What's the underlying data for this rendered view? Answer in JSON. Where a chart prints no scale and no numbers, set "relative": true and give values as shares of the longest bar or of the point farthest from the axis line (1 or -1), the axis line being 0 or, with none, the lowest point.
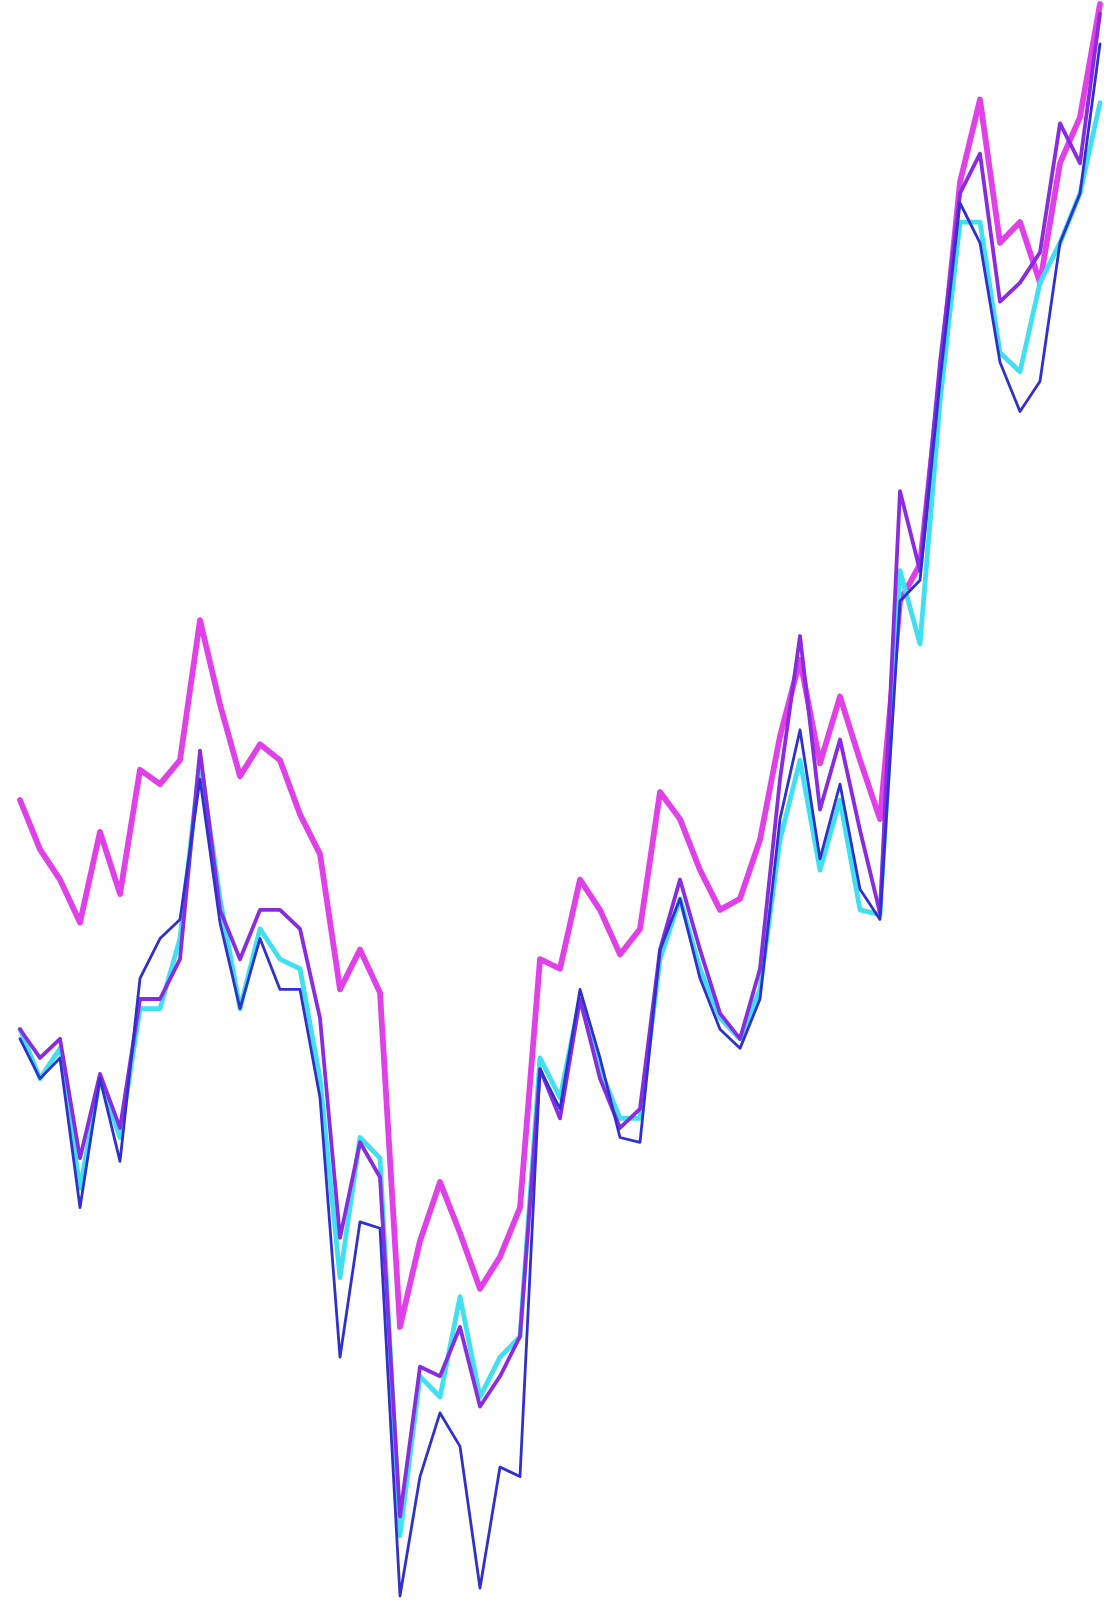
{
  "chart_data": {
    "type": "line",
    "relative": true,
    "categories": [
      null,
      null,
      null,
      null,
      null,
      null,
      null,
      null,
      null,
      null,
      null,
      null,
      null,
      null,
      null,
      null,
      null,
      null,
      null,
      null,
      null,
      null,
      null,
      null,
      null,
      null,
      null,
      null,
      null,
      null,
      null,
      null,
      null,
      null,
      null,
      null,
      null,
      null,
      null,
      null,
      null,
      null,
      null,
      null,
      null,
      null,
      null,
      null,
      null,
      null,
      null,
      null,
      null,
      null,
      null
    ],
    "series": [
      {
        "color": "#e040e8",
        "values": [
          0.5,
          0.469,
          0.45,
          0.423,
          0.48,
          0.441,
          0.519,
          0.51,
          0.525,
          0.613,
          0.56,
          0.515,
          0.535,
          0.525,
          0.491,
          0.466,
          0.381,
          0.406,
          0.379,
          0.169,
          0.223,
          0.26,
          0.228,
          0.193,
          0.213,
          0.244,
          0.4,
          0.394,
          0.45,
          0.431,
          0.403,
          0.419,
          0.505,
          0.488,
          0.456,
          0.431,
          0.438,
          0.475,
          0.54,
          0.588,
          0.523,
          0.565,
          0.525,
          0.488,
          0.625,
          0.648,
          0.763,
          0.888,
          0.94,
          0.85,
          0.863,
          0.825,
          0.9,
          0.929,
          1
        ]
      },
      {
        "color": "#40e0f0",
        "values": [
          0.356,
          0.325,
          0.344,
          0.256,
          0.325,
          0.288,
          0.369,
          0.369,
          0.413,
          0.525,
          0.438,
          0.369,
          0.419,
          0.4,
          0.394,
          0.325,
          0.2,
          0.288,
          0.275,
          0.038,
          0.138,
          0.125,
          0.188,
          0.125,
          0.15,
          0.163,
          0.338,
          0.313,
          0.375,
          0.331,
          0.3,
          0.3,
          0.4,
          0.438,
          0.394,
          0.363,
          0.35,
          0.381,
          0.475,
          0.525,
          0.456,
          0.5,
          0.431,
          0.428,
          0.644,
          0.598,
          0.75,
          0.863,
          0.863,
          0.781,
          0.769,
          0.825,
          0.85,
          0.881,
          0.938
        ]
      },
      {
        "color": "#8a2be2",
        "values": [
          0.356,
          0.338,
          0.35,
          0.275,
          0.328,
          0.294,
          0.375,
          0.375,
          0.4,
          0.531,
          0.431,
          0.4,
          0.431,
          0.431,
          0.419,
          0.363,
          0.225,
          0.285,
          0.263,
          0.05,
          0.144,
          0.138,
          0.169,
          0.119,
          0.138,
          0.163,
          0.331,
          0.3,
          0.375,
          0.325,
          0.294,
          0.306,
          0.406,
          0.45,
          0.406,
          0.366,
          0.35,
          0.394,
          0.513,
          0.603,
          0.494,
          0.538,
          0.481,
          0.429,
          0.694,
          0.644,
          0.775,
          0.881,
          0.906,
          0.813,
          0.825,
          0.844,
          0.925,
          0.9,
          0.994
        ]
      },
      {
        "color": "#3030d0",
        "values": [
          0.35,
          0.325,
          0.338,
          0.244,
          0.325,
          0.273,
          0.388,
          0.413,
          0.425,
          0.513,
          0.423,
          0.369,
          0.413,
          0.381,
          0.381,
          0.313,
          0.15,
          0.235,
          0.231,
          0,
          0.075,
          0.115,
          0.094,
          0.005,
          0.081,
          0.075,
          0.331,
          0.306,
          0.381,
          0.338,
          0.288,
          0.285,
          0.406,
          0.438,
          0.388,
          0.356,
          0.344,
          0.375,
          0.488,
          0.544,
          0.463,
          0.51,
          0.444,
          0.425,
          0.625,
          0.638,
          0.763,
          0.875,
          0.85,
          0.775,
          0.744,
          0.763,
          0.85,
          0.881,
          0.975
        ]
      }
    ]
  }
}
